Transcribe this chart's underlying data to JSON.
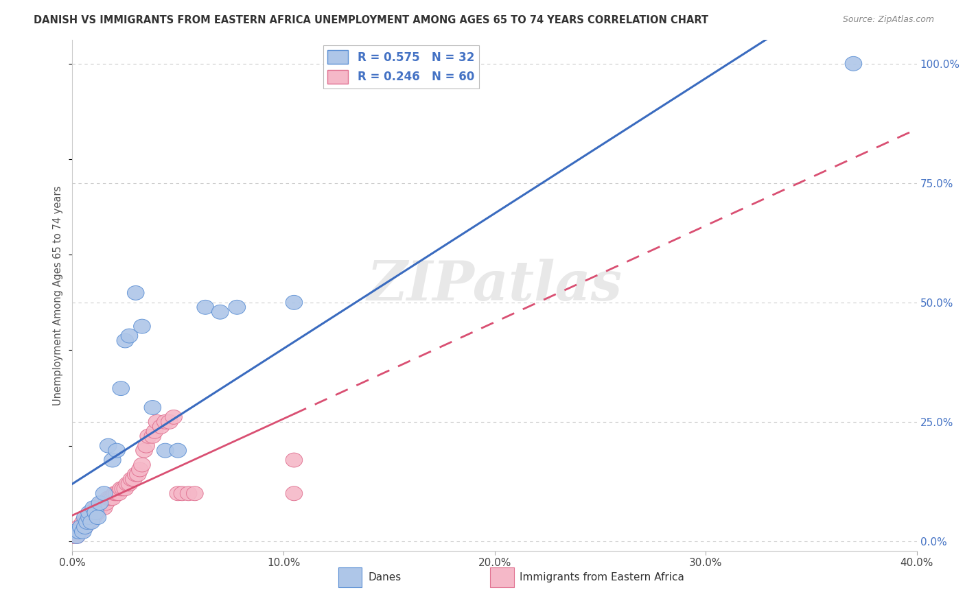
{
  "title": "DANISH VS IMMIGRANTS FROM EASTERN AFRICA UNEMPLOYMENT AMONG AGES 65 TO 74 YEARS CORRELATION CHART",
  "source": "Source: ZipAtlas.com",
  "ylabel": "Unemployment Among Ages 65 to 74 years",
  "xlim": [
    0.0,
    0.4
  ],
  "ylim": [
    -0.02,
    1.05
  ],
  "xtick_labels": [
    "0.0%",
    "10.0%",
    "20.0%",
    "30.0%",
    "40.0%"
  ],
  "xtick_vals": [
    0.0,
    0.1,
    0.2,
    0.3,
    0.4
  ],
  "ytick_right_labels": [
    "100.0%",
    "75.0%",
    "50.0%",
    "25.0%",
    "0.0%"
  ],
  "ytick_right_vals": [
    1.0,
    0.75,
    0.5,
    0.25,
    0.0
  ],
  "danes_R": 0.575,
  "danes_N": 32,
  "immigrants_R": 0.246,
  "immigrants_N": 60,
  "danes_color": "#aec6e8",
  "danes_line_color": "#3a6bbf",
  "danes_edge_color": "#5b8fd4",
  "immigrants_color": "#f5b8c8",
  "immigrants_line_color": "#d94f72",
  "immigrants_edge_color": "#e07090",
  "danes_scatter_x": [
    0.0,
    0.002,
    0.003,
    0.004,
    0.005,
    0.006,
    0.006,
    0.007,
    0.008,
    0.008,
    0.009,
    0.01,
    0.011,
    0.012,
    0.013,
    0.015,
    0.017,
    0.019,
    0.021,
    0.023,
    0.025,
    0.027,
    0.03,
    0.033,
    0.038,
    0.044,
    0.05,
    0.063,
    0.07,
    0.078,
    0.105,
    0.37
  ],
  "danes_scatter_y": [
    0.02,
    0.01,
    0.02,
    0.03,
    0.02,
    0.03,
    0.05,
    0.04,
    0.05,
    0.06,
    0.04,
    0.07,
    0.06,
    0.05,
    0.08,
    0.1,
    0.2,
    0.17,
    0.19,
    0.32,
    0.42,
    0.43,
    0.52,
    0.45,
    0.28,
    0.19,
    0.19,
    0.49,
    0.48,
    0.49,
    0.5,
    1.0
  ],
  "immigrants_scatter_x": [
    0.0,
    0.001,
    0.002,
    0.003,
    0.003,
    0.004,
    0.004,
    0.005,
    0.005,
    0.006,
    0.006,
    0.007,
    0.007,
    0.008,
    0.008,
    0.009,
    0.009,
    0.01,
    0.01,
    0.011,
    0.011,
    0.012,
    0.012,
    0.013,
    0.014,
    0.015,
    0.016,
    0.017,
    0.018,
    0.019,
    0.02,
    0.021,
    0.022,
    0.023,
    0.024,
    0.025,
    0.026,
    0.027,
    0.028,
    0.029,
    0.03,
    0.031,
    0.032,
    0.033,
    0.034,
    0.035,
    0.036,
    0.038,
    0.039,
    0.04,
    0.042,
    0.044,
    0.046,
    0.048,
    0.05,
    0.052,
    0.055,
    0.058,
    0.105,
    0.105
  ],
  "immigrants_scatter_y": [
    0.01,
    0.02,
    0.01,
    0.03,
    0.02,
    0.02,
    0.03,
    0.04,
    0.03,
    0.03,
    0.04,
    0.04,
    0.05,
    0.04,
    0.05,
    0.05,
    0.06,
    0.05,
    0.06,
    0.06,
    0.07,
    0.06,
    0.07,
    0.07,
    0.08,
    0.07,
    0.08,
    0.09,
    0.09,
    0.09,
    0.1,
    0.1,
    0.1,
    0.11,
    0.11,
    0.11,
    0.12,
    0.12,
    0.13,
    0.13,
    0.14,
    0.14,
    0.15,
    0.16,
    0.19,
    0.2,
    0.22,
    0.22,
    0.23,
    0.25,
    0.24,
    0.25,
    0.25,
    0.26,
    0.1,
    0.1,
    0.1,
    0.1,
    0.17,
    0.1
  ],
  "danes_trend": [
    0.0,
    0.019,
    1.64
  ],
  "immigrants_trend": [
    0.0,
    0.028,
    0.36
  ],
  "watermark_text": "ZIPatlas",
  "legend_dane_label": "Danes",
  "legend_immigrant_label": "Immigrants from Eastern Africa",
  "grid_color": "#cccccc",
  "background_color": "#ffffff"
}
